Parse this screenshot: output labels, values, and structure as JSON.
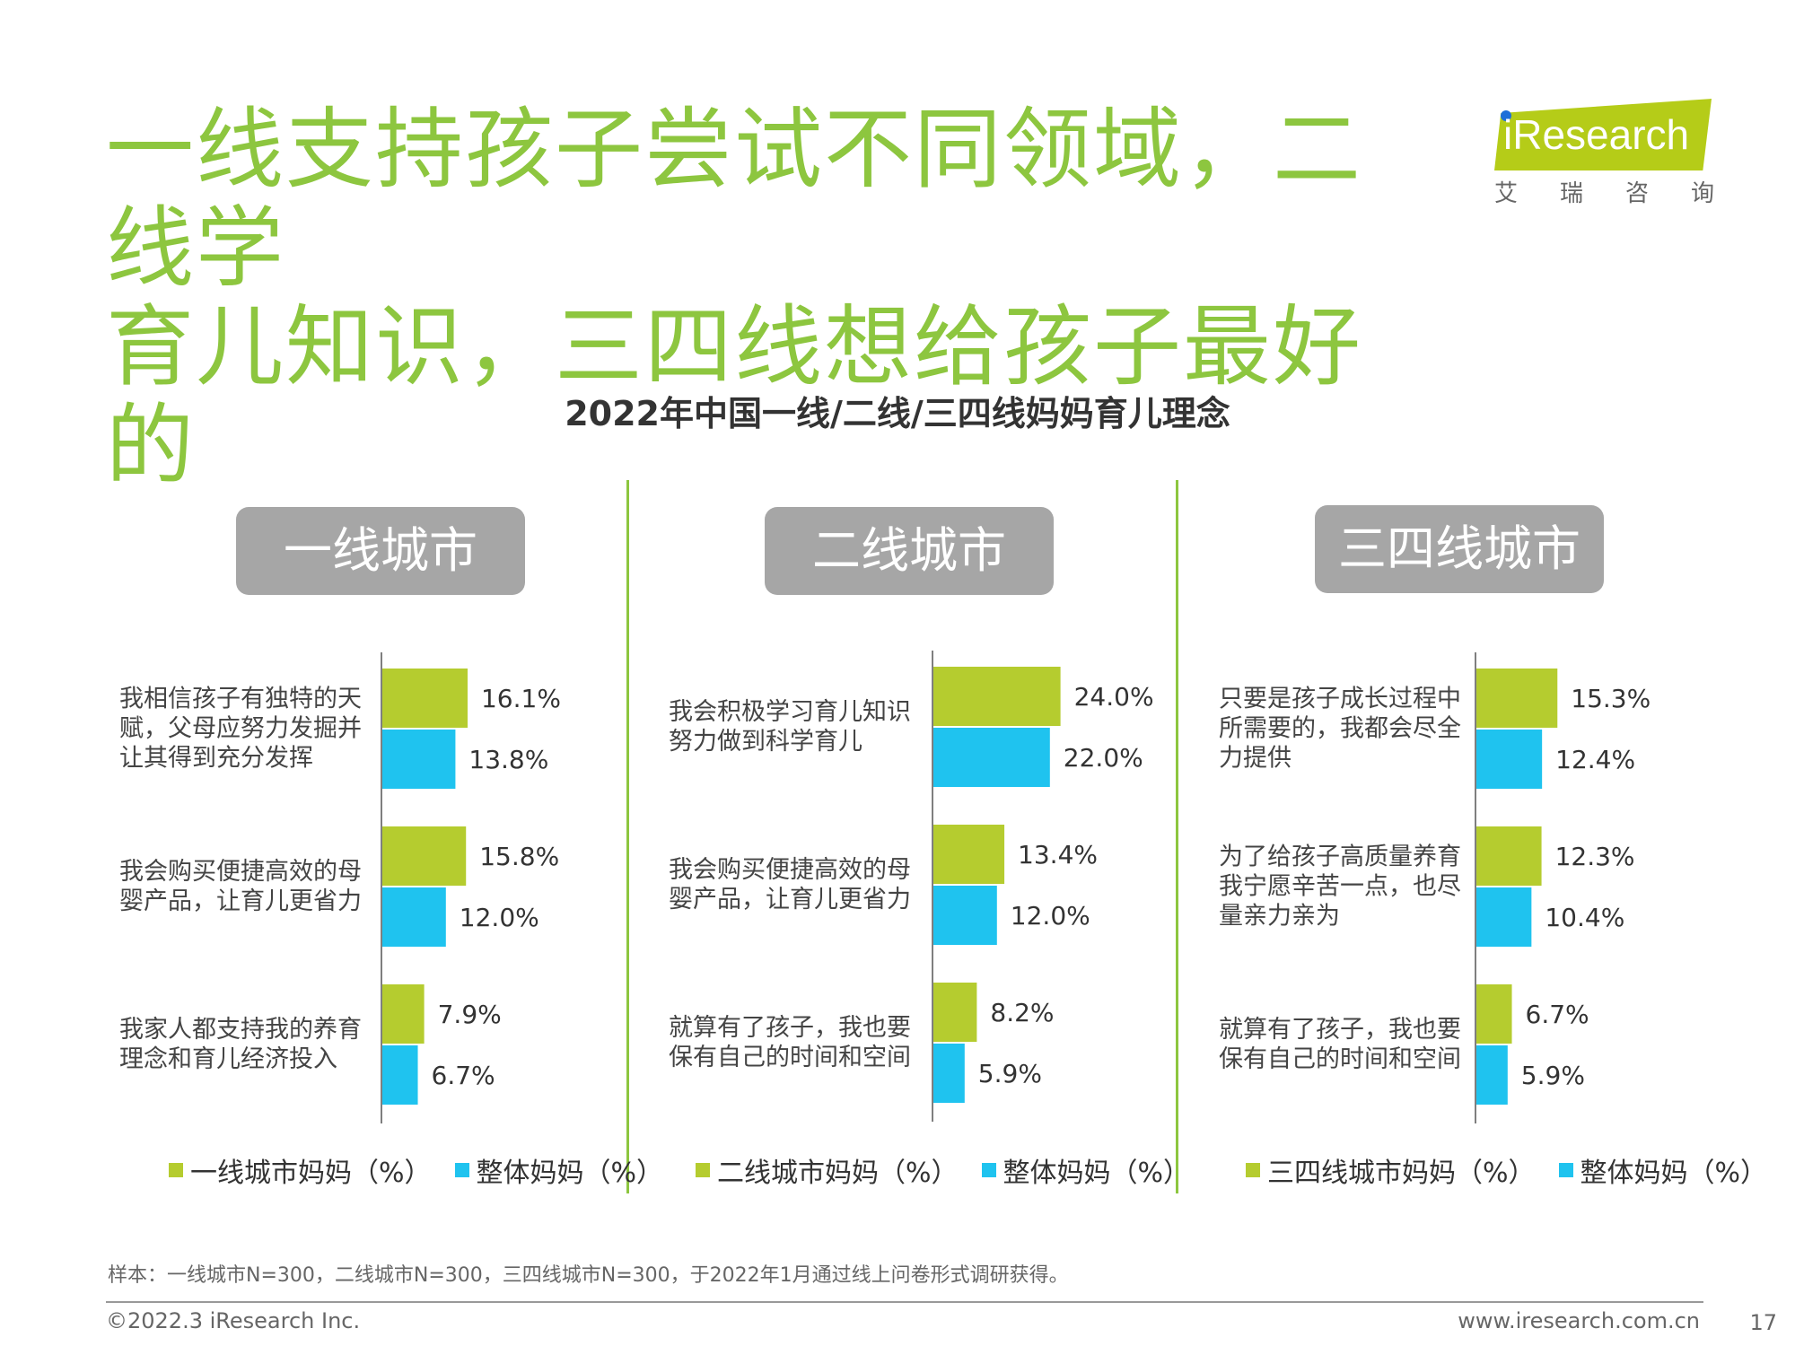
{
  "headline": {
    "line1": "一线支持孩子尝试不同领域，二线学",
    "line2": "育儿知识，三四线想给孩子最好的",
    "color": "#8dc63f"
  },
  "logo": {
    "brand": "iResearch",
    "sub": [
      "艾",
      "瑞",
      "咨",
      "询"
    ]
  },
  "colors": {
    "city": "#b5cc2f",
    "overall": "#1fc3ef"
  },
  "chart_data": [
    {
      "type": "bar",
      "title": "2022年中国一线/二线/三四线妈妈育儿理念",
      "panel": "一线城市",
      "categories": [
        "我相信孩子有独特的天赋，父母应努力发掘并让其得到充分发挥",
        "我会购买便捷高效的母婴产品，让育儿更省力",
        "我家人都支持我的养育理念和育儿经济投入"
      ],
      "category_lines": [
        [
          "我相信孩子有独特的天",
          "赋，父母应努力发掘并",
          "让其得到充分发挥"
        ],
        [
          "我会购买便捷高效的母",
          "婴产品，让育儿更省力"
        ],
        [
          "我家人都支持我的养育",
          "理念和育儿经济投入"
        ]
      ],
      "series": [
        {
          "name": "一线城市妈妈（%）",
          "values": [
            16.1,
            15.8,
            7.9
          ]
        },
        {
          "name": "整体妈妈（%）",
          "values": [
            13.8,
            12.0,
            6.7
          ]
        }
      ],
      "value_labels": [
        [
          "16.1%",
          "15.8%",
          "7.9%"
        ],
        [
          "13.8%",
          "12.0%",
          "6.7%"
        ]
      ],
      "legend": "bottom"
    },
    {
      "type": "bar",
      "panel": "二线城市",
      "categories": [
        "我会积极学习育儿知识努力做到科学育儿",
        "我会购买便捷高效的母婴产品，让育儿更省力",
        "就算有了孩子，我也要保有自己的时间和空间"
      ],
      "category_lines": [
        [
          "我会积极学习育儿知识",
          "努力做到科学育儿"
        ],
        [
          "我会购买便捷高效的母",
          "婴产品，让育儿更省力"
        ],
        [
          "就算有了孩子，我也要",
          "保有自己的时间和空间"
        ]
      ],
      "series": [
        {
          "name": "二线城市妈妈（%）",
          "values": [
            24.0,
            13.4,
            8.2
          ]
        },
        {
          "name": "整体妈妈（%）",
          "values": [
            22.0,
            12.0,
            5.9
          ]
        }
      ],
      "value_labels": [
        [
          "24.0%",
          "13.4%",
          "8.2%"
        ],
        [
          "22.0%",
          "12.0%",
          "5.9%"
        ]
      ],
      "legend": "bottom"
    },
    {
      "type": "bar",
      "panel": "三四线城市",
      "categories": [
        "只要是孩子成长过程中所需要的，我都会尽全力提供",
        "为了给孩子高质量养育我宁愿辛苦一点，也尽量亲力亲为",
        "就算有了孩子，我也要保有自己的时间和空间"
      ],
      "category_lines": [
        [
          "只要是孩子成长过程中",
          "所需要的，我都会尽全",
          "力提供"
        ],
        [
          "为了给孩子高质量养育",
          "我宁愿辛苦一点，也尽",
          "量亲力亲为"
        ],
        [
          "就算有了孩子，我也要",
          "保有自己的时间和空间"
        ]
      ],
      "series": [
        {
          "name": "三四线城市妈妈（%）",
          "values": [
            15.3,
            12.3,
            6.7
          ]
        },
        {
          "name": "整体妈妈（%）",
          "values": [
            12.4,
            10.4,
            5.9
          ]
        }
      ],
      "value_labels": [
        [
          "15.3%",
          "12.3%",
          "6.7%"
        ],
        [
          "12.4%",
          "10.4%",
          "5.9%"
        ]
      ],
      "legend": "bottom"
    }
  ],
  "footer": {
    "note": "样本：一线城市N=300，二线城市N=300，三四线城市N=300，于2022年1月通过线上问卷形式调研获得。",
    "copyright": "©2022.3 iResearch Inc.",
    "website": "www.iresearch.com.cn",
    "page": "17"
  }
}
